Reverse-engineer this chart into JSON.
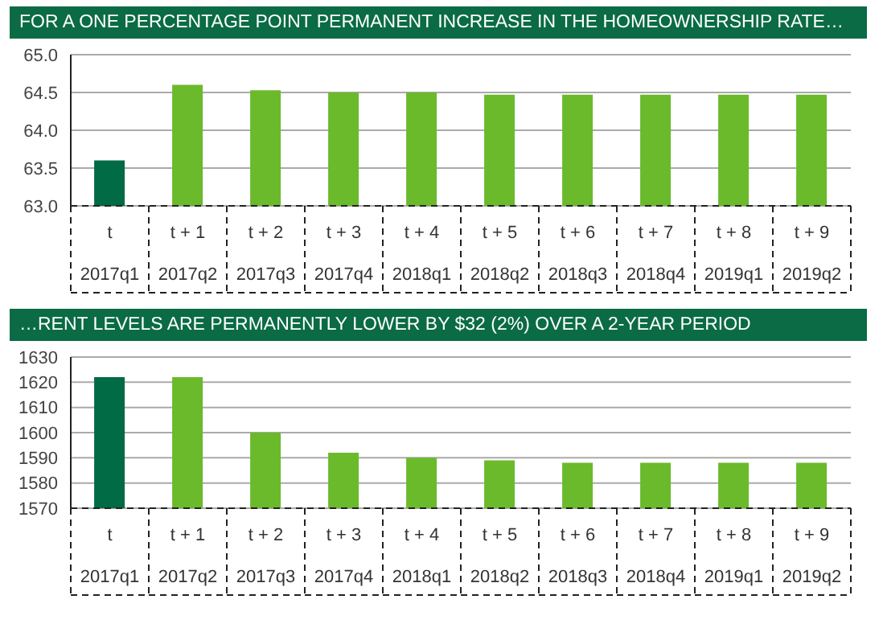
{
  "chart_data": [
    {
      "type": "bar",
      "title": "FOR A ONE PERCENTAGE POINT PERMANENT INCREASE IN THE HOMEOWNERSHIP RATE…",
      "categories": [
        "t\n2017q1",
        "t + 1\n2017q2",
        "t + 2\n2017q3",
        "t + 3\n2017q4",
        "t + 4\n2018q1",
        "t + 5\n2018q2",
        "t + 6\n2018q3",
        "t + 7\n2018q4",
        "t + 8\n2019q1",
        "t + 9\n2019q2"
      ],
      "values": [
        63.6,
        64.6,
        64.53,
        64.5,
        64.5,
        64.47,
        64.47,
        64.47,
        64.47,
        64.47
      ],
      "colors": [
        "#006b45",
        "#6aba2c",
        "#6aba2c",
        "#6aba2c",
        "#6aba2c",
        "#6aba2c",
        "#6aba2c",
        "#6aba2c",
        "#6aba2c",
        "#6aba2c"
      ],
      "ylim": [
        63.0,
        65.0
      ],
      "yticks": [
        {
          "value": 63,
          "label": "63.0"
        },
        {
          "value": 63.5,
          "label": "63.5"
        },
        {
          "value": 64,
          "label": "64.0"
        },
        {
          "value": 64.5,
          "label": "64.5"
        },
        {
          "value": 65,
          "label": "65.0"
        }
      ],
      "grid": "y"
    },
    {
      "type": "bar",
      "title": "…RENT LEVELS ARE PERMANENTLY LOWER BY $32 (2%) OVER A 2-YEAR PERIOD",
      "categories": [
        "t\n2017q1",
        "t + 1\n2017q2",
        "t + 2\n2017q3",
        "t + 3\n2017q4",
        "t + 4\n2018q1",
        "t + 5\n2018q2",
        "t + 6\n2018q3",
        "t + 7\n2018q4",
        "t + 8\n2019q1",
        "t + 9\n2019q2"
      ],
      "values": [
        1622,
        1622,
        1600,
        1592,
        1590,
        1589,
        1588,
        1588,
        1588,
        1588
      ],
      "colors": [
        "#006b45",
        "#6aba2c",
        "#6aba2c",
        "#6aba2c",
        "#6aba2c",
        "#6aba2c",
        "#6aba2c",
        "#6aba2c",
        "#6aba2c",
        "#6aba2c"
      ],
      "ylim": [
        1570,
        1630
      ],
      "yticks": [
        1570,
        1580,
        1590,
        1600,
        1610,
        1620,
        1630
      ],
      "grid": "y"
    }
  ]
}
